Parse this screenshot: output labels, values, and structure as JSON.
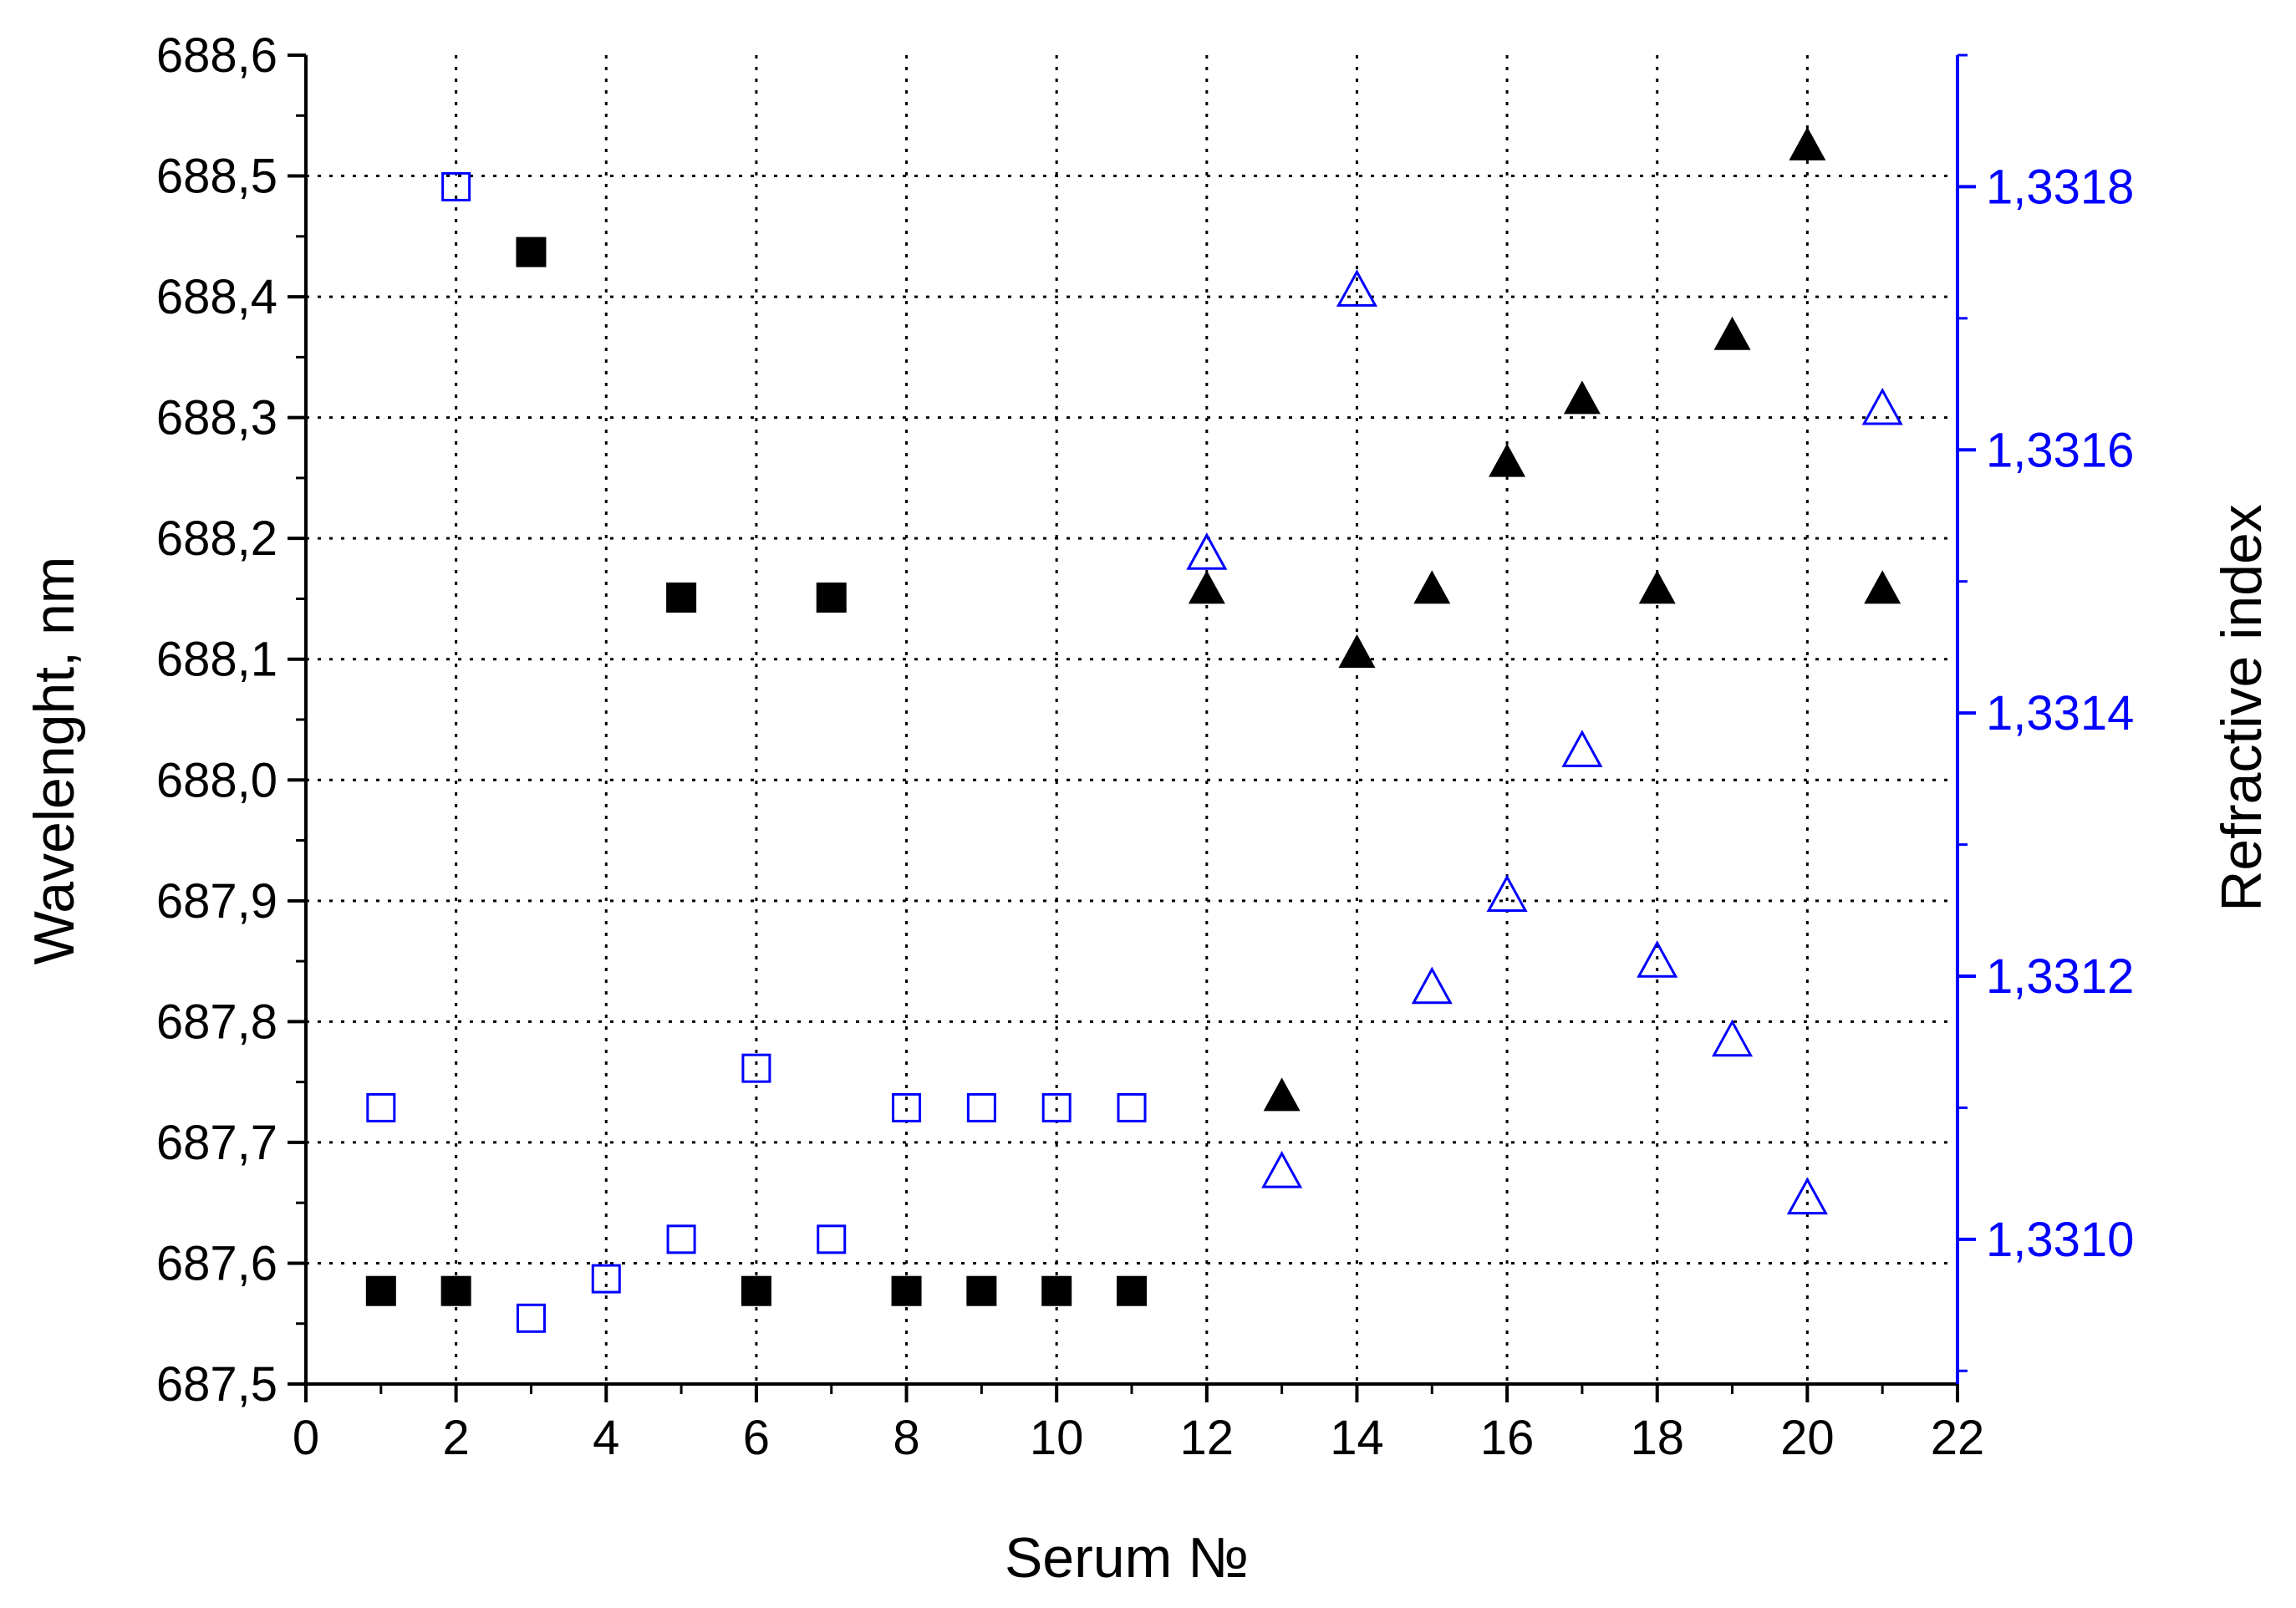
{
  "colors": {
    "primary": "#000000",
    "secondary": "#0000ff"
  },
  "chart_data": {
    "type": "scatter",
    "title": "",
    "xlabel": "Serum №",
    "ylabel": "Wavelenght, nm",
    "y2label": "Refractive index",
    "xlim": [
      0,
      22
    ],
    "ylim": [
      687.5,
      688.6
    ],
    "y2lim": [
      1.33089,
      1.3319
    ],
    "grid": true,
    "legend": "none",
    "x_ticks": [
      "0",
      "2",
      "4",
      "6",
      "8",
      "10",
      "12",
      "14",
      "16",
      "18",
      "20",
      "22"
    ],
    "y_ticks": [
      "687,5",
      "687,6",
      "687,7",
      "687,8",
      "687,9",
      "688,0",
      "688,1",
      "688,2",
      "688,3",
      "688,4",
      "688,5",
      "688,6"
    ],
    "y2_ticks": [
      "1,3310",
      "1,3312",
      "1,3314",
      "1,3316",
      "1,3318"
    ],
    "series": [
      {
        "axis": "left",
        "marker": "square-filled",
        "color": "#000000",
        "points": [
          [
            1,
            687.577
          ],
          [
            2,
            687.577
          ],
          [
            3,
            688.437
          ],
          [
            5,
            688.151
          ],
          [
            6,
            687.577
          ],
          [
            7,
            688.151
          ],
          [
            8,
            687.577
          ],
          [
            9,
            687.577
          ],
          [
            10,
            687.577
          ],
          [
            11,
            687.577
          ]
        ]
      },
      {
        "axis": "left",
        "marker": "triangle-filled",
        "color": "#000000",
        "points": [
          [
            12,
            688.157
          ],
          [
            13,
            687.737
          ],
          [
            14,
            688.104
          ],
          [
            15,
            688.157
          ],
          [
            16,
            688.262
          ],
          [
            17,
            688.314
          ],
          [
            18,
            688.157
          ],
          [
            19,
            688.367
          ],
          [
            20,
            688.524
          ],
          [
            21,
            688.157
          ]
        ]
      },
      {
        "axis": "right",
        "marker": "square-open",
        "color": "#0000ff",
        "points": [
          [
            1,
            1.3311
          ],
          [
            2,
            1.3318
          ],
          [
            3,
            1.33094
          ],
          [
            4,
            1.33097
          ],
          [
            5,
            1.331
          ],
          [
            6,
            1.33113
          ],
          [
            7,
            1.331
          ],
          [
            8,
            1.3311
          ],
          [
            9,
            1.3311
          ],
          [
            10,
            1.3311
          ],
          [
            11,
            1.3311
          ]
        ]
      },
      {
        "axis": "right",
        "marker": "triangle-open",
        "color": "#0000ff",
        "points": [
          [
            12,
            1.33152
          ],
          [
            13,
            1.33105
          ],
          [
            14,
            1.33172
          ],
          [
            15,
            1.33119
          ],
          [
            16,
            1.33126
          ],
          [
            17,
            1.33137
          ],
          [
            18,
            1.33121
          ],
          [
            19,
            1.33115
          ],
          [
            20,
            1.33103
          ],
          [
            21,
            1.33163
          ]
        ]
      }
    ]
  }
}
